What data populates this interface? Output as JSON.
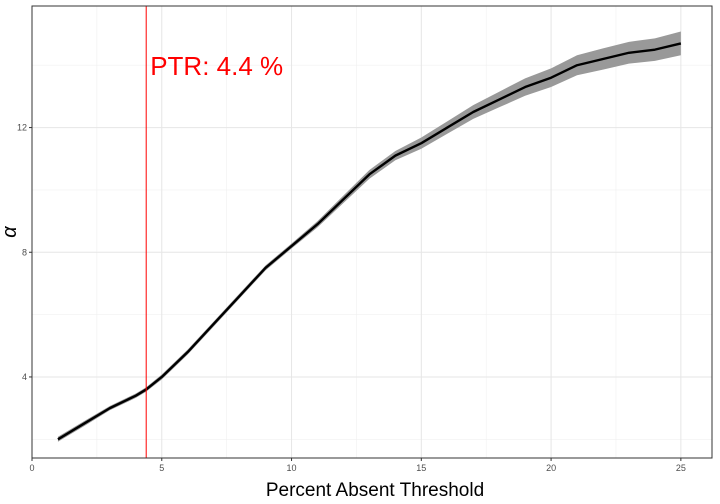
{
  "chart_data": {
    "type": "line",
    "title": "",
    "xlabel": "Percent Absent Threshold",
    "ylabel": "α",
    "xlim": [
      0,
      26.2
    ],
    "ylim": [
      1.4,
      15.9
    ],
    "x_ticks": [
      0,
      5,
      10,
      15,
      20,
      25
    ],
    "y_ticks": [
      4,
      8,
      12
    ],
    "grid": true,
    "legend": "none",
    "annotation": {
      "label": "PTR: 4.4 %",
      "x": 4.4,
      "color": "#ff0000"
    },
    "series": [
      {
        "line_color": "#000000",
        "band_color": "#999999",
        "x": [
          1.0,
          2.0,
          3.0,
          4.0,
          4.4,
          5.0,
          6.0,
          7.0,
          8.0,
          9.0,
          10.0,
          11.0,
          12.0,
          13.0,
          14.0,
          15.0,
          16.0,
          17.0,
          18.0,
          19.0,
          20.0,
          21.0,
          22.0,
          23.0,
          24.0,
          25.0
        ],
        "y": [
          2.0,
          2.5,
          3.0,
          3.4,
          3.6,
          4.0,
          4.8,
          5.7,
          6.6,
          7.5,
          8.2,
          8.9,
          9.7,
          10.5,
          11.1,
          11.5,
          12.0,
          12.5,
          12.9,
          13.3,
          13.6,
          14.0,
          14.2,
          14.4,
          14.5,
          14.7
        ],
        "lower": [
          1.92,
          2.42,
          2.93,
          3.33,
          3.53,
          3.92,
          4.72,
          5.62,
          6.52,
          7.42,
          8.12,
          8.8,
          9.58,
          10.36,
          10.95,
          11.32,
          11.8,
          12.28,
          12.65,
          13.02,
          13.3,
          13.68,
          13.86,
          14.05,
          14.14,
          14.32
        ],
        "upper": [
          2.08,
          2.58,
          3.07,
          3.47,
          3.67,
          4.08,
          4.88,
          5.78,
          6.68,
          7.58,
          8.28,
          9.0,
          9.82,
          10.64,
          11.25,
          11.68,
          12.2,
          12.72,
          13.15,
          13.58,
          13.9,
          14.32,
          14.54,
          14.75,
          14.86,
          15.08
        ]
      }
    ]
  }
}
